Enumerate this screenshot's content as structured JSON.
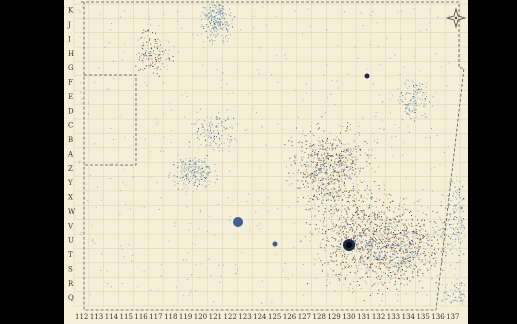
{
  "map": {
    "row_labels": [
      "K",
      "J",
      "I",
      "H",
      "G",
      "F",
      "E",
      "D",
      "C",
      "B",
      "A",
      "Z",
      "Y",
      "X",
      "W",
      "V",
      "U",
      "T",
      "S",
      "R",
      "Q"
    ],
    "col_labels": [
      "112",
      "113",
      "114",
      "115",
      "116",
      "117",
      "118",
      "119",
      "120",
      "121",
      "122",
      "123",
      "124",
      "125",
      "126",
      "127",
      "128",
      "129",
      "130",
      "131",
      "132",
      "133",
      "134",
      "135",
      "136",
      "137"
    ],
    "colors": {
      "background": "#f4efd6",
      "grid": "#d9d3b6",
      "border_dash": "#555555",
      "dense_blue": "#3d5f95",
      "light_blue": "#8aa2c4",
      "dark_red": "#6b3a2a"
    },
    "compass_icon": "compass-rose-icon"
  }
}
